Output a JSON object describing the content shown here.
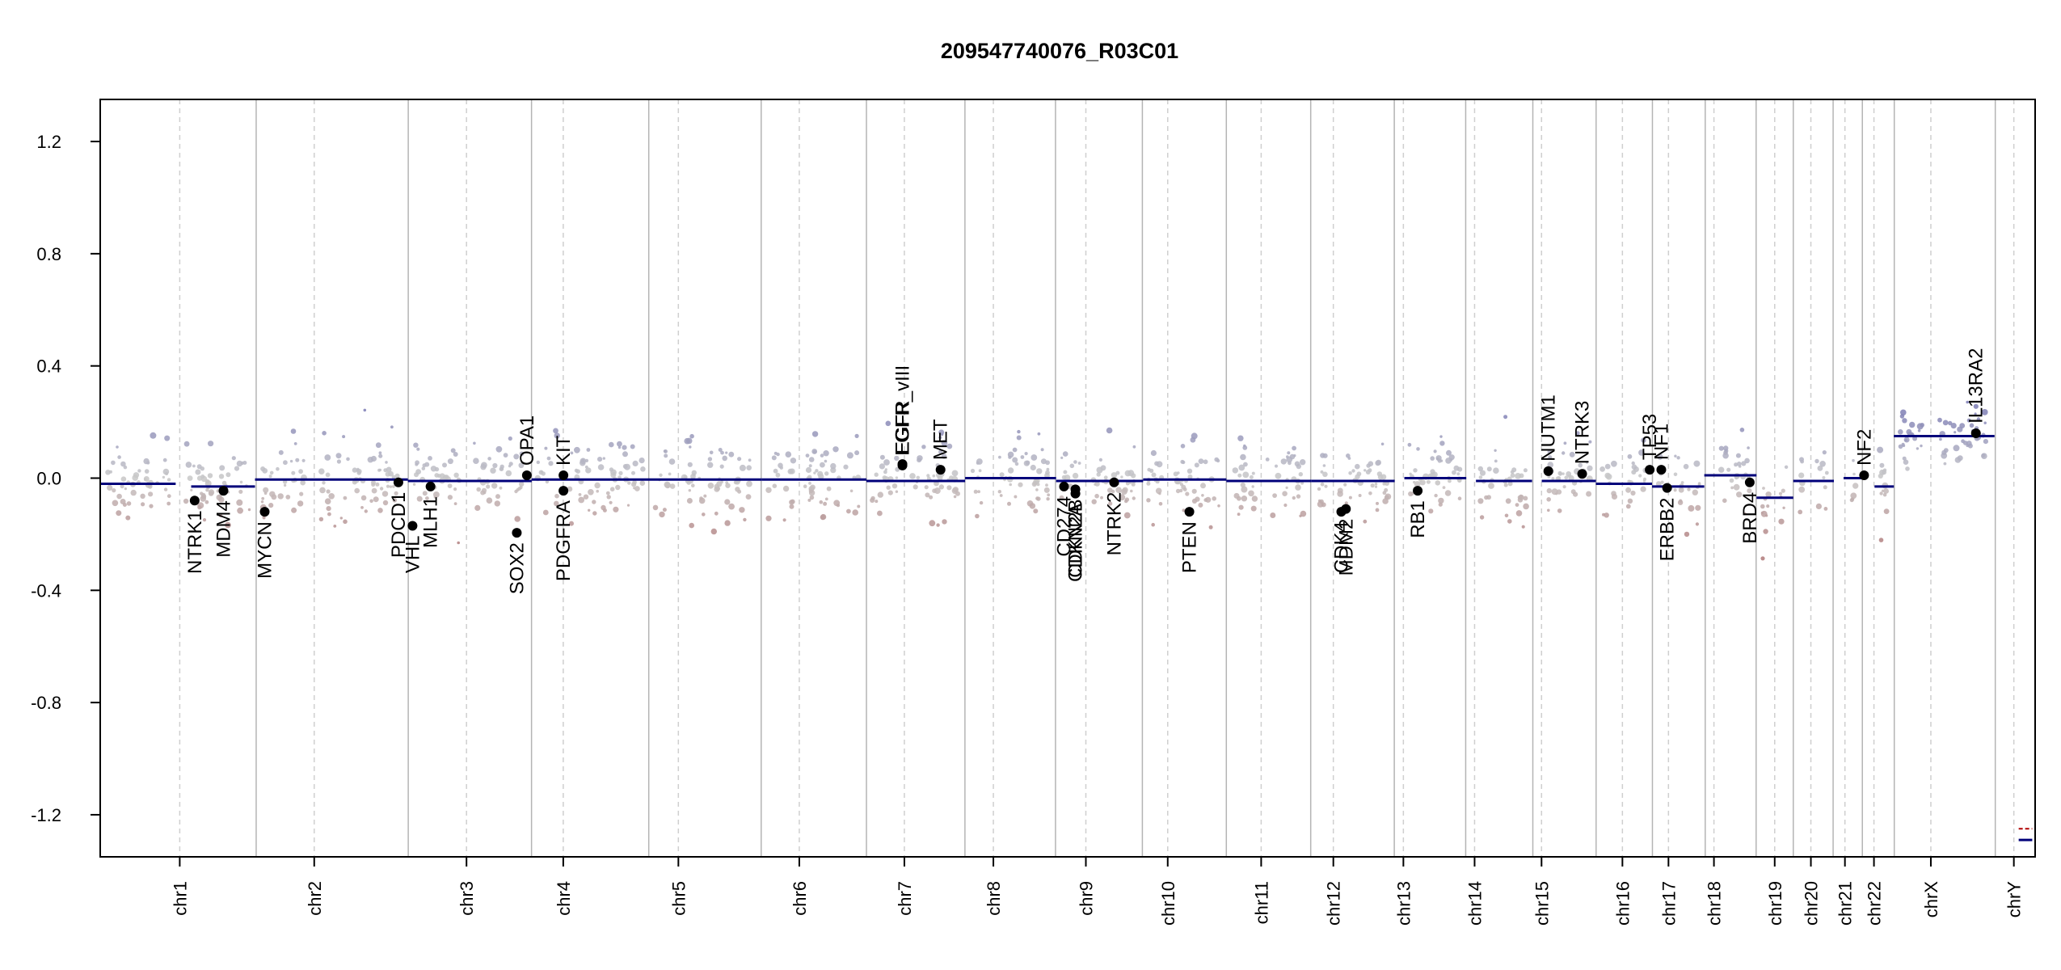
{
  "chart_data": {
    "type": "scatter",
    "title": "209547740076_R03C01",
    "xlabel": "",
    "ylabel": "",
    "ylim": [
      -1.35,
      1.35
    ],
    "yticks": [
      1.2,
      0.8,
      0.4,
      0.0,
      -0.4,
      -0.8,
      -1.2
    ],
    "ytick_labels": [
      "1.2",
      "0.8",
      "0.4",
      "0.0",
      "-0.4",
      "-0.8",
      "-1.2"
    ],
    "grid": "vertical chromosome boundaries (solid) and centromeres (dashed)",
    "colors": {
      "gain": "#7b7bb4",
      "loss": "#b07a7a",
      "neutral": "#c8c8c8",
      "segment": "#00007a",
      "gene": "#000000",
      "boundary": "#b4b4b4",
      "centromere": "#cfcfcf",
      "low_segment": "#b00000"
    },
    "chromosomes": [
      {
        "name": "chr1",
        "start": 0.0,
        "end": 0.0806,
        "cen": 0.0411
      },
      {
        "name": "chr2",
        "start": 0.0806,
        "end": 0.1592,
        "cen": 0.1106
      },
      {
        "name": "chr3",
        "start": 0.1592,
        "end": 0.2229,
        "cen": 0.1893
      },
      {
        "name": "chr4",
        "start": 0.2229,
        "end": 0.2835,
        "cen": 0.2393
      },
      {
        "name": "chr5",
        "start": 0.2835,
        "end": 0.3416,
        "cen": 0.2988
      },
      {
        "name": "chr6",
        "start": 0.3416,
        "end": 0.396,
        "cen": 0.3613
      },
      {
        "name": "chr7",
        "start": 0.396,
        "end": 0.4469,
        "cen": 0.4156
      },
      {
        "name": "chr8",
        "start": 0.4469,
        "end": 0.4937,
        "cen": 0.4616
      },
      {
        "name": "chr9",
        "start": 0.4937,
        "end": 0.5386,
        "cen": 0.5094
      },
      {
        "name": "chr10",
        "start": 0.5386,
        "end": 0.582,
        "cen": 0.5517
      },
      {
        "name": "chr11",
        "start": 0.582,
        "end": 0.6256,
        "cen": 0.6
      },
      {
        "name": "chr12",
        "start": 0.6256,
        "end": 0.6688,
        "cen": 0.6373
      },
      {
        "name": "chr13",
        "start": 0.6688,
        "end": 0.7057,
        "cen": 0.6735
      },
      {
        "name": "chr14",
        "start": 0.7057,
        "end": 0.7404,
        "cen": 0.7103
      },
      {
        "name": "chr15",
        "start": 0.7404,
        "end": 0.7731,
        "cen": 0.7449
      },
      {
        "name": "chr16",
        "start": 0.7731,
        "end": 0.8022,
        "cen": 0.7867
      },
      {
        "name": "chr17",
        "start": 0.8022,
        "end": 0.8295,
        "cen": 0.8105
      },
      {
        "name": "chr18",
        "start": 0.8295,
        "end": 0.8558,
        "cen": 0.834
      },
      {
        "name": "chr19",
        "start": 0.8558,
        "end": 0.875,
        "cen": 0.8654
      },
      {
        "name": "chr20",
        "start": 0.875,
        "end": 0.8956,
        "cen": 0.8841
      },
      {
        "name": "chr21",
        "start": 0.8956,
        "end": 0.9107,
        "cen": 0.9017
      },
      {
        "name": "chr22",
        "start": 0.9107,
        "end": 0.9272,
        "cen": 0.9167
      },
      {
        "name": "chrX",
        "start": 0.9272,
        "end": 0.9794,
        "cen": 0.9461
      },
      {
        "name": "chrY",
        "start": 0.9794,
        "end": 1.0,
        "cen": 0.989
      }
    ],
    "segments": [
      {
        "chr": "chr1",
        "x0": 0.0,
        "x1": 0.039,
        "y": -0.02
      },
      {
        "chr": "chr1",
        "x0": 0.047,
        "x1": 0.08,
        "y": -0.03
      },
      {
        "chr": "chr2",
        "x0": 0.08,
        "x1": 0.159,
        "y": -0.005
      },
      {
        "chr": "chr3",
        "x0": 0.159,
        "x1": 0.223,
        "y": -0.01
      },
      {
        "chr": "chr4",
        "x0": 0.223,
        "x1": 0.283,
        "y": -0.005
      },
      {
        "chr": "chr5",
        "x0": 0.283,
        "x1": 0.342,
        "y": -0.005
      },
      {
        "chr": "chr6",
        "x0": 0.342,
        "x1": 0.396,
        "y": -0.005
      },
      {
        "chr": "chr7",
        "x0": 0.396,
        "x1": 0.447,
        "y": -0.01
      },
      {
        "chr": "chr8",
        "x0": 0.447,
        "x1": 0.494,
        "y": 0.0
      },
      {
        "chr": "chr9",
        "x0": 0.494,
        "x1": 0.539,
        "y": -0.01
      },
      {
        "chr": "chr10",
        "x0": 0.539,
        "x1": 0.582,
        "y": -0.005
      },
      {
        "chr": "chr11",
        "x0": 0.582,
        "x1": 0.626,
        "y": -0.01
      },
      {
        "chr": "chr12",
        "x0": 0.626,
        "x1": 0.669,
        "y": -0.01
      },
      {
        "chr": "chr13",
        "x0": 0.674,
        "x1": 0.706,
        "y": 0.0
      },
      {
        "chr": "chr14",
        "x0": 0.711,
        "x1": 0.74,
        "y": -0.01
      },
      {
        "chr": "chr15",
        "x0": 0.745,
        "x1": 0.773,
        "y": -0.01
      },
      {
        "chr": "chr16",
        "x0": 0.773,
        "x1": 0.802,
        "y": -0.02
      },
      {
        "chr": "chr17",
        "x0": 0.802,
        "x1": 0.829,
        "y": -0.03
      },
      {
        "chr": "chr18",
        "x0": 0.829,
        "x1": 0.856,
        "y": 0.01
      },
      {
        "chr": "chr19",
        "x0": 0.856,
        "x1": 0.875,
        "y": -0.07
      },
      {
        "chr": "chr20",
        "x0": 0.875,
        "x1": 0.896,
        "y": -0.01
      },
      {
        "chr": "chr21",
        "x0": 0.901,
        "x1": 0.911,
        "y": 0.0
      },
      {
        "chr": "chr22",
        "x0": 0.917,
        "x1": 0.927,
        "y": -0.03
      },
      {
        "chr": "chrX",
        "x0": 0.927,
        "x1": 0.979,
        "y": 0.15
      },
      {
        "chr": "chrY",
        "x0": 0.9915,
        "x1": 0.9985,
        "y": -1.29
      }
    ],
    "low_segments": [
      {
        "chr": "chrY",
        "x0": 0.9915,
        "x1": 0.9985,
        "y": -1.25
      }
    ],
    "genes": [
      {
        "name": "NTRK1",
        "x": 0.0488,
        "y": -0.08,
        "side": "below"
      },
      {
        "name": "MDM4",
        "x": 0.0637,
        "y": -0.045,
        "side": "below"
      },
      {
        "name": "MYCN",
        "x": 0.085,
        "y": -0.12,
        "side": "below"
      },
      {
        "name": "VHL",
        "x": 0.1614,
        "y": -0.17,
        "side": "below"
      },
      {
        "name": "PDCD1",
        "x": 0.1541,
        "y": -0.015,
        "side": "below"
      },
      {
        "name": "MLH1",
        "x": 0.1707,
        "y": -0.03,
        "side": "below"
      },
      {
        "name": "SOX2",
        "x": 0.2153,
        "y": -0.195,
        "side": "below"
      },
      {
        "name": "OPA1",
        "x": 0.2205,
        "y": 0.01,
        "side": "above"
      },
      {
        "name": "KIT",
        "x": 0.2394,
        "y": 0.01,
        "side": "above"
      },
      {
        "name": "PDGFRA",
        "x": 0.2394,
        "y": -0.045,
        "side": "below"
      },
      {
        "name": "EGFR",
        "x": 0.4146,
        "y": 0.05,
        "side": "above"
      },
      {
        "name": "EGFR_vIII",
        "x": 0.4146,
        "y": 0.045,
        "side": "above"
      },
      {
        "name": "MET",
        "x": 0.4343,
        "y": 0.03,
        "side": "above"
      },
      {
        "name": "CD274",
        "x": 0.4981,
        "y": -0.03,
        "side": "below"
      },
      {
        "name": "CDKN2A",
        "x": 0.504,
        "y": -0.055,
        "side": "below"
      },
      {
        "name": "CDKN2B",
        "x": 0.504,
        "y": -0.04,
        "side": "below"
      },
      {
        "name": "NTRK2",
        "x": 0.524,
        "y": -0.015,
        "side": "below"
      },
      {
        "name": "PTEN",
        "x": 0.5629,
        "y": -0.12,
        "side": "below"
      },
      {
        "name": "CDK4",
        "x": 0.6414,
        "y": -0.12,
        "side": "below"
      },
      {
        "name": "MDM2",
        "x": 0.6438,
        "y": -0.11,
        "side": "below"
      },
      {
        "name": "RB1",
        "x": 0.6809,
        "y": -0.045,
        "side": "below"
      },
      {
        "name": "NUTM1",
        "x": 0.7484,
        "y": 0.025,
        "side": "above"
      },
      {
        "name": "NTRK3",
        "x": 0.7659,
        "y": 0.015,
        "side": "above"
      },
      {
        "name": "TP53",
        "x": 0.8008,
        "y": 0.03,
        "side": "above"
      },
      {
        "name": "NF1",
        "x": 0.8068,
        "y": 0.03,
        "side": "above"
      },
      {
        "name": "ERBB2",
        "x": 0.8098,
        "y": -0.035,
        "side": "below"
      },
      {
        "name": "BRD4",
        "x": 0.8525,
        "y": -0.015,
        "side": "below"
      },
      {
        "name": "NF2",
        "x": 0.9116,
        "y": 0.01,
        "side": "above"
      },
      {
        "name": "IL13RA2",
        "x": 0.9694,
        "y": 0.16,
        "side": "above"
      }
    ]
  }
}
